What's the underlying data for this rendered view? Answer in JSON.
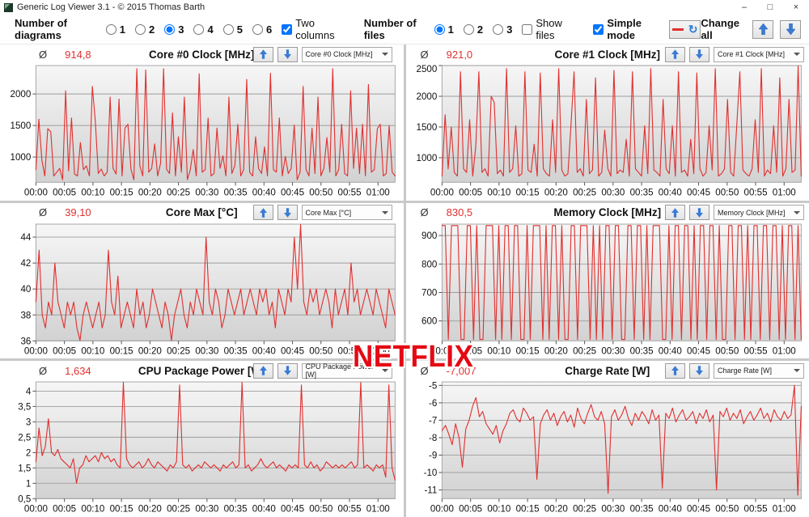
{
  "window": {
    "title": "Generic Log Viewer 3.1 - © 2015 Thomas Barth",
    "icons": {
      "minimize": "–",
      "maximize": "□",
      "close": "×"
    }
  },
  "toolbar": {
    "diagrams_label": "Number of diagrams",
    "diagram_options": [
      "1",
      "2",
      "3",
      "4",
      "5",
      "6"
    ],
    "diagram_selected": "3",
    "two_columns_label": "Two columns",
    "two_columns_checked": true,
    "files_label": "Number of files",
    "file_options": [
      "1",
      "2",
      "3"
    ],
    "file_selected": "1",
    "show_files_label": "Show files",
    "show_files_checked": false,
    "simple_mode_label": "Simple mode",
    "simple_mode_checked": true,
    "line_sample_color": "#e0302f",
    "refresh_icon": "↻",
    "change_all_label": "Change all"
  },
  "panel_ui": {
    "avg_symbol": "Ø"
  },
  "watermark": "NETFLIX",
  "chart_data": [
    {
      "type": "line",
      "title": "Core #0 Clock [MHz]",
      "average": "914,8",
      "dropdown_value": "Core #0 Clock [MHz]",
      "line_color": "#e0302f",
      "grid": true,
      "xlim_minutes": [
        0,
        63
      ],
      "x_tick_minutes": [
        0,
        5,
        10,
        15,
        20,
        25,
        30,
        35,
        40,
        45,
        50,
        55,
        60
      ],
      "x_tick_labels": [
        "00:00",
        "00:05",
        "00:10",
        "00:15",
        "00:20",
        "00:25",
        "00:30",
        "00:35",
        "00:40",
        "00:45",
        "00:50",
        "00:55",
        "01:00"
      ],
      "ylim": [
        600,
        2450
      ],
      "y_ticks": [
        {
          "v": 1000,
          "label": "1000"
        },
        {
          "v": 1500,
          "label": "1500"
        },
        {
          "v": 2000,
          "label": "2000"
        }
      ],
      "values": [
        800,
        1600,
        950,
        700,
        1450,
        1400,
        700,
        760,
        820,
        640,
        2050,
        780,
        1620,
        730,
        700,
        1230,
        800,
        860,
        700,
        2120,
        1580,
        740,
        810,
        700,
        760,
        1950,
        820,
        730,
        1920,
        700,
        1460,
        1520,
        810,
        640,
        2400,
        860,
        700,
        2380,
        760,
        820,
        1210,
        700,
        900,
        2400,
        810,
        740,
        1700,
        700,
        1320,
        760,
        1950,
        640,
        800,
        1120,
        700,
        2320,
        760,
        800,
        1620,
        700,
        740,
        1460,
        820,
        1020,
        700,
        1950,
        740,
        860,
        1520,
        700,
        800,
        2230,
        760,
        700,
        1320,
        820,
        740,
        1160,
        700,
        2330,
        800,
        760,
        1620,
        700,
        1010,
        740,
        820,
        1510,
        640,
        760,
        2120,
        800,
        700,
        1460,
        740,
        1950,
        700,
        820,
        1310,
        760,
        2400,
        700,
        800,
        1520,
        740,
        700,
        2050,
        820,
        1460,
        740,
        1520,
        700,
        2150,
        760,
        800,
        1450,
        1520,
        700,
        740,
        1500,
        760,
        700
      ]
    },
    {
      "type": "line",
      "title": "Core #1 Clock [MHz]",
      "average": "921,0",
      "dropdown_value": "Core #1 Clock [MHz]",
      "line_color": "#e0302f",
      "grid": true,
      "xlim_minutes": [
        0,
        63
      ],
      "x_tick_minutes": [
        0,
        5,
        10,
        15,
        20,
        25,
        30,
        35,
        40,
        45,
        50,
        55,
        60
      ],
      "x_tick_labels": [
        "00:00",
        "00:05",
        "00:10",
        "00:15",
        "00:20",
        "00:25",
        "00:30",
        "00:35",
        "00:40",
        "00:45",
        "00:50",
        "00:55",
        "01:00"
      ],
      "ylim": [
        600,
        2500
      ],
      "y_ticks": [
        {
          "v": 1000,
          "label": "1000"
        },
        {
          "v": 1500,
          "label": "1500"
        },
        {
          "v": 2000,
          "label": "2000"
        },
        {
          "v": 2500,
          "label": "2500"
        }
      ],
      "values": [
        700,
        1700,
        820,
        1500,
        760,
        700,
        2400,
        820,
        760,
        1620,
        700,
        1200,
        2400,
        760,
        820,
        700,
        2000,
        1900,
        740,
        800,
        700,
        2450,
        760,
        820,
        1520,
        700,
        740,
        2400,
        800,
        760,
        1220,
        700,
        2380,
        820,
        740,
        700,
        1620,
        760,
        2450,
        800,
        700,
        740,
        1520,
        2400,
        760,
        820,
        700,
        1950,
        740,
        800,
        2300,
        700,
        760,
        1450,
        820,
        700,
        2420,
        740,
        800,
        760,
        1300,
        700,
        2400,
        820,
        760,
        700,
        1520,
        740,
        2450,
        800,
        760,
        700,
        1950,
        820,
        740,
        1520,
        700,
        2400,
        760,
        800,
        700,
        1300,
        740,
        2380,
        820,
        700,
        760,
        1520,
        800,
        2450,
        700,
        740,
        820,
        1950,
        760,
        700,
        1520,
        2400,
        800,
        740,
        700,
        820,
        1620,
        760,
        2450,
        700,
        800,
        740,
        1520,
        760,
        2300,
        700,
        820,
        1950,
        760,
        800,
        2500,
        700
      ]
    },
    {
      "type": "line",
      "title": "Core Max [°C]",
      "average": "39,10",
      "dropdown_value": "Core Max [°C]",
      "line_color": "#e0302f",
      "grid": true,
      "xlim_minutes": [
        0,
        63
      ],
      "x_tick_minutes": [
        0,
        5,
        10,
        15,
        20,
        25,
        30,
        35,
        40,
        45,
        50,
        55,
        60
      ],
      "x_tick_labels": [
        "00:00",
        "00:05",
        "00:10",
        "00:15",
        "00:20",
        "00:25",
        "00:30",
        "00:35",
        "00:40",
        "00:45",
        "00:50",
        "00:55",
        "01:00"
      ],
      "ylim": [
        36,
        45
      ],
      "y_ticks": [
        {
          "v": 36,
          "label": "36"
        },
        {
          "v": 38,
          "label": "38"
        },
        {
          "v": 40,
          "label": "40"
        },
        {
          "v": 42,
          "label": "42"
        },
        {
          "v": 44,
          "label": "44"
        }
      ],
      "values": [
        39,
        43,
        38,
        37,
        39,
        38,
        42,
        39,
        38,
        37,
        39,
        38,
        39,
        37,
        36,
        38,
        39,
        38,
        37,
        38,
        39,
        37,
        38,
        43,
        39,
        38,
        41,
        37,
        38,
        39,
        38,
        37,
        40,
        38,
        39,
        37,
        38,
        40,
        39,
        38,
        37,
        39,
        38,
        36,
        38,
        39,
        40,
        38,
        37,
        39,
        38,
        40,
        39,
        38,
        44,
        39,
        38,
        40,
        39,
        37,
        38,
        40,
        39,
        38,
        39,
        40,
        38,
        39,
        40,
        39,
        38,
        40,
        39,
        40,
        38,
        39,
        37,
        40,
        39,
        38,
        40,
        39,
        44,
        40,
        45,
        39,
        38,
        40,
        39,
        40,
        38,
        39,
        40,
        39,
        37,
        40,
        38,
        39,
        40,
        38,
        42,
        39,
        40,
        38,
        39,
        40,
        39,
        38,
        40,
        39,
        38,
        37,
        40,
        39,
        38
      ]
    },
    {
      "type": "line",
      "title": "Memory Clock [MHz]",
      "average": "830,5",
      "dropdown_value": "Memory Clock [MHz]",
      "line_color": "#e0302f",
      "grid": true,
      "xlim_minutes": [
        0,
        63
      ],
      "x_tick_minutes": [
        0,
        5,
        10,
        15,
        20,
        25,
        30,
        35,
        40,
        45,
        50,
        55,
        60
      ],
      "x_tick_labels": [
        "00:00",
        "00:05",
        "00:10",
        "00:15",
        "00:20",
        "00:25",
        "00:30",
        "00:35",
        "00:40",
        "00:45",
        "00:50",
        "00:55",
        "01:00"
      ],
      "ylim": [
        530,
        940
      ],
      "y_ticks": [
        {
          "v": 600,
          "label": "600"
        },
        {
          "v": 700,
          "label": "700"
        },
        {
          "v": 800,
          "label": "800"
        },
        {
          "v": 900,
          "label": "900"
        }
      ],
      "values": [
        935,
        935,
        535,
        935,
        935,
        935,
        535,
        535,
        935,
        935,
        535,
        935,
        535,
        535,
        935,
        935,
        935,
        535,
        935,
        535,
        935,
        935,
        535,
        935,
        935,
        535,
        535,
        935,
        535,
        935,
        935,
        935,
        535,
        935,
        535,
        935,
        935,
        535,
        935,
        535,
        535,
        935,
        935,
        535,
        935,
        935,
        935,
        535,
        935,
        535,
        935,
        535,
        935,
        935,
        535,
        935,
        935,
        535,
        535,
        935,
        935,
        535,
        935,
        935,
        535,
        935,
        535,
        935,
        935,
        935,
        535,
        535,
        935,
        535,
        935,
        935,
        535,
        935,
        935,
        535,
        935,
        535,
        935,
        935,
        535,
        935,
        935,
        535,
        935,
        535,
        535,
        935,
        935,
        535,
        935,
        935,
        535,
        935,
        535,
        935,
        935,
        535,
        935,
        935,
        535,
        935,
        935,
        535,
        935,
        535,
        935,
        935,
        535,
        935,
        535
      ]
    },
    {
      "type": "line",
      "title": "CPU Package Power [W]",
      "average": "1,634",
      "dropdown_value": "CPU Package Power [W]",
      "line_color": "#e0302f",
      "grid": true,
      "xlim_minutes": [
        0,
        63
      ],
      "x_tick_minutes": [
        0,
        5,
        10,
        15,
        20,
        25,
        30,
        35,
        40,
        45,
        50,
        55,
        60
      ],
      "x_tick_labels": [
        "00:00",
        "00:05",
        "00:10",
        "00:15",
        "00:20",
        "00:25",
        "00:30",
        "00:35",
        "00:40",
        "00:45",
        "00:50",
        "00:55",
        "01:00"
      ],
      "ylim": [
        0.5,
        4.3
      ],
      "y_ticks": [
        {
          "v": 0.5,
          "label": "0,5"
        },
        {
          "v": 1,
          "label": "1"
        },
        {
          "v": 1.5,
          "label": "1,5"
        },
        {
          "v": 2,
          "label": "2"
        },
        {
          "v": 2.5,
          "label": "2,5"
        },
        {
          "v": 3,
          "label": "3"
        },
        {
          "v": 3.5,
          "label": "3,5"
        },
        {
          "v": 4,
          "label": "4"
        }
      ],
      "values": [
        1.7,
        2.8,
        1.9,
        2.2,
        3.1,
        2.0,
        1.9,
        2.1,
        1.8,
        1.7,
        1.6,
        1.5,
        1.8,
        1.0,
        1.5,
        1.6,
        1.9,
        1.7,
        1.8,
        1.9,
        1.7,
        2.0,
        1.8,
        1.9,
        1.7,
        1.8,
        1.6,
        1.5,
        4.3,
        1.8,
        1.6,
        1.5,
        1.6,
        1.7,
        1.5,
        1.6,
        1.8,
        1.6,
        1.5,
        1.7,
        1.6,
        1.5,
        1.4,
        1.6,
        1.5,
        1.7,
        4.2,
        1.6,
        1.5,
        1.6,
        1.4,
        1.5,
        1.6,
        1.5,
        1.7,
        1.6,
        1.5,
        1.6,
        1.5,
        1.4,
        1.6,
        1.5,
        1.6,
        1.7,
        1.5,
        1.6,
        4.3,
        1.5,
        1.6,
        1.4,
        1.5,
        1.6,
        1.8,
        1.6,
        1.5,
        1.6,
        1.7,
        1.5,
        1.6,
        1.5,
        1.4,
        1.6,
        1.5,
        1.6,
        1.5,
        4.2,
        1.6,
        1.5,
        1.7,
        1.5,
        1.6,
        1.4,
        1.5,
        1.7,
        1.6,
        1.5,
        1.6,
        1.5,
        1.6,
        1.5,
        1.6,
        1.7,
        1.5,
        1.6,
        4.3,
        1.5,
        1.6,
        1.5,
        1.4,
        1.6,
        1.5,
        1.6,
        1.2,
        4.2,
        1.5,
        1.1
      ]
    },
    {
      "type": "line",
      "title": "Charge Rate [W]",
      "average": "-7,007",
      "dropdown_value": "Charge Rate [W]",
      "line_color": "#e0302f",
      "grid": true,
      "xlim_minutes": [
        0,
        63
      ],
      "x_tick_minutes": [
        0,
        5,
        10,
        15,
        20,
        25,
        30,
        35,
        40,
        45,
        50,
        55,
        60
      ],
      "x_tick_labels": [
        "00:00",
        "00:05",
        "00:10",
        "00:15",
        "00:20",
        "00:25",
        "00:30",
        "00:35",
        "00:40",
        "00:45",
        "00:50",
        "00:55",
        "01:00"
      ],
      "ylim": [
        -11.5,
        -4.8
      ],
      "y_ticks": [
        {
          "v": -5,
          "label": "-5"
        },
        {
          "v": -6,
          "label": "-6"
        },
        {
          "v": -7,
          "label": "-7"
        },
        {
          "v": -8,
          "label": "-8"
        },
        {
          "v": -9,
          "label": "-9"
        },
        {
          "v": -10,
          "label": "-10"
        },
        {
          "v": -11,
          "label": "-11"
        }
      ],
      "values": [
        -7.6,
        -7.3,
        -7.8,
        -8.4,
        -7.2,
        -8.0,
        -9.7,
        -7.5,
        -7.0,
        -6.2,
        -5.7,
        -6.8,
        -6.5,
        -7.2,
        -7.5,
        -7.8,
        -7.3,
        -8.3,
        -7.6,
        -7.2,
        -6.6,
        -6.4,
        -6.9,
        -7.1,
        -6.3,
        -6.6,
        -7.0,
        -6.8,
        -10.4,
        -7.2,
        -6.7,
        -6.4,
        -7.0,
        -6.6,
        -7.3,
        -6.8,
        -6.5,
        -7.1,
        -6.7,
        -7.4,
        -6.3,
        -6.9,
        -7.2,
        -6.6,
        -6.1,
        -6.8,
        -7.0,
        -6.5,
        -7.2,
        -11.2,
        -6.8,
        -6.4,
        -7.0,
        -6.7,
        -6.2,
        -6.9,
        -7.3,
        -6.6,
        -7.0,
        -6.5,
        -6.8,
        -7.2,
        -6.4,
        -7.0,
        -6.7,
        -10.9,
        -6.6,
        -6.9,
        -6.3,
        -7.1,
        -6.7,
        -6.4,
        -7.0,
        -6.8,
        -6.5,
        -7.2,
        -6.6,
        -6.9,
        -6.4,
        -7.1,
        -6.7,
        -11.0,
        -6.5,
        -6.8,
        -6.3,
        -7.0,
        -6.6,
        -6.9,
        -6.4,
        -7.2,
        -6.8,
        -6.5,
        -7.0,
        -6.7,
        -6.3,
        -6.9,
        -6.6,
        -7.1,
        -6.4,
        -6.8,
        -7.0,
        -6.5,
        -6.9,
        -6.7,
        -5.0,
        -11.3,
        -6.2
      ]
    }
  ]
}
